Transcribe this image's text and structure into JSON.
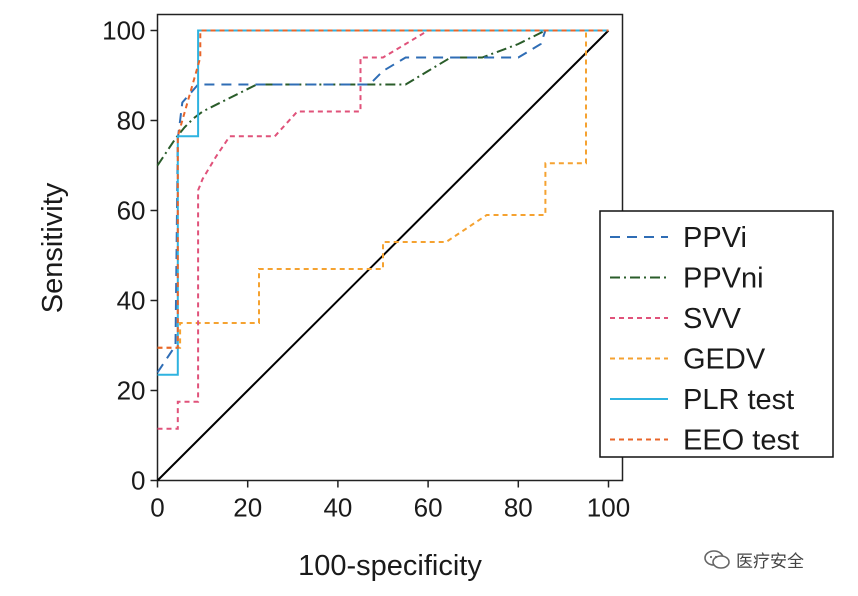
{
  "chart_data": {
    "type": "line",
    "title": "",
    "xlabel": "100-specificity",
    "ylabel": "Sensitivity",
    "xlim": [
      0,
      100
    ],
    "ylim": [
      0,
      100
    ],
    "xticks": [
      "0",
      "20",
      "40",
      "60",
      "80",
      "100"
    ],
    "yticks": [
      "0",
      "20",
      "40",
      "60",
      "80",
      "100"
    ],
    "grid": false,
    "legend_position": "right",
    "reference_line": {
      "name": "reference",
      "x": [
        0,
        100
      ],
      "y": [
        0,
        100
      ],
      "color": "#000000"
    },
    "series": [
      {
        "name": "PPVi",
        "color": "#2f6db5",
        "dash": "10,7",
        "x": [
          0,
          2,
          4,
          4.5,
          5,
          5.5,
          9,
          9.5,
          10,
          12,
          20,
          30,
          40,
          47,
          50,
          55,
          60,
          70,
          80,
          85,
          86,
          90,
          95,
          100
        ],
        "y": [
          24,
          27,
          30,
          76,
          80,
          84,
          88,
          88,
          88,
          88,
          88,
          88,
          88,
          88,
          91,
          94,
          94,
          94,
          94,
          97,
          100,
          100,
          100,
          100
        ]
      },
      {
        "name": "PPVni",
        "color": "#2a5c2a",
        "dash": "10,4,2,4",
        "x": [
          0,
          2,
          4,
          6,
          8,
          10,
          14,
          18,
          22,
          26,
          30,
          40,
          50,
          55,
          60,
          65,
          72,
          80,
          86,
          90,
          100
        ],
        "y": [
          70,
          73,
          76,
          78.5,
          80.5,
          82,
          84,
          86,
          88,
          88,
          88,
          88,
          88,
          88,
          91,
          94,
          94,
          97,
          100,
          100,
          100
        ]
      },
      {
        "name": "SVV",
        "color": "#e0527a",
        "dash": "5,4",
        "x": [
          0,
          4.5,
          4.5,
          5,
          5,
          9,
          9,
          10,
          13,
          16,
          18,
          26,
          31,
          35,
          40,
          45,
          45,
          50,
          55,
          60,
          65,
          70,
          80,
          90,
          100
        ],
        "y": [
          11.5,
          11.5,
          17.5,
          17.5,
          17.5,
          17.5,
          64.5,
          67,
          72,
          76.5,
          76.5,
          76.5,
          82,
          82,
          82,
          82,
          94,
          94,
          97,
          100,
          100,
          100,
          100,
          100,
          100
        ]
      },
      {
        "name": "GEDV",
        "color": "#f5a230",
        "dash": "5,4",
        "x": [
          0,
          5,
          5,
          9,
          9,
          22.5,
          22.5,
          45,
          50,
          50,
          64,
          73,
          86,
          86,
          95,
          95,
          100
        ],
        "y": [
          29.5,
          29.5,
          35,
          35,
          35,
          35,
          47,
          47,
          47,
          53,
          53,
          59,
          59,
          70.5,
          70.5,
          100,
          100
        ]
      },
      {
        "name": "PLR test",
        "color": "#2fb3e0",
        "dash": "",
        "x": [
          0,
          4.5,
          4.5,
          9,
          9,
          100
        ],
        "y": [
          23.5,
          23.5,
          76.5,
          76.5,
          100,
          100
        ]
      },
      {
        "name": "EEO test",
        "color": "#e8652a",
        "dash": "5,4",
        "x": [
          0,
          4.5,
          4.5,
          9.5,
          9.5,
          100
        ],
        "y": [
          29.5,
          29.5,
          76.5,
          94,
          100,
          100
        ]
      }
    ]
  },
  "watermark": {
    "text": "医疗安全"
  }
}
